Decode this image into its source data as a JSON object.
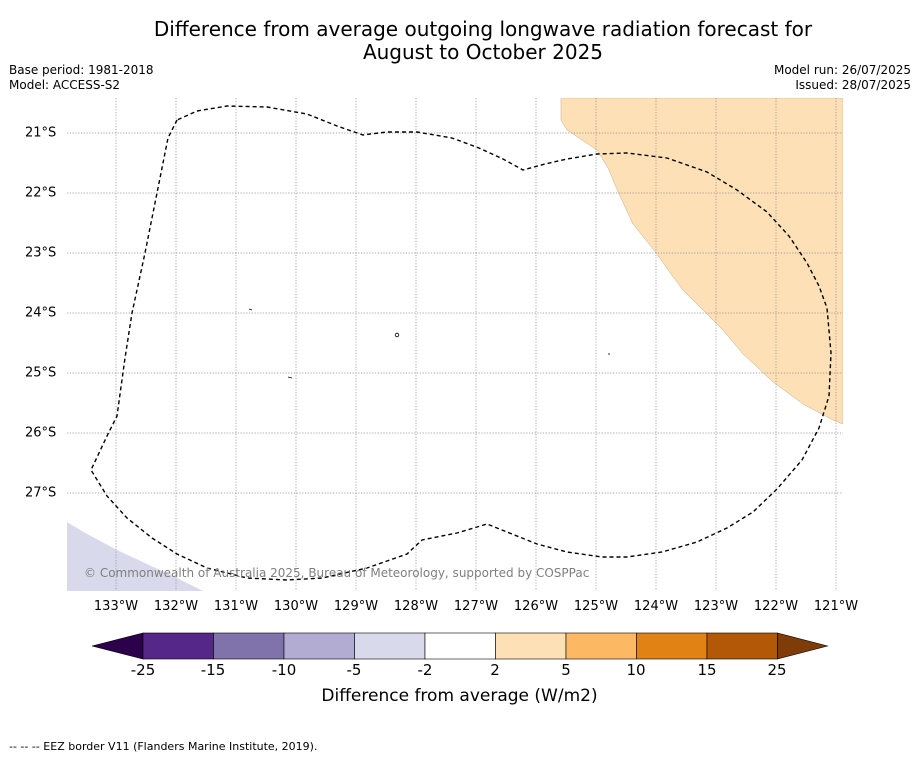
{
  "title_line1": "Difference from average outgoing longwave radiation forecast for",
  "title_line2": "August to October 2025",
  "base_period": "Base period: 1981-2018",
  "model": "Model: ACCESS-S2",
  "model_run": "Model run: 26/07/2025",
  "issued": "Issued: 28/07/2025",
  "lat_labels": [
    "21°S",
    "22°S",
    "23°S",
    "24°S",
    "25°S",
    "26°S",
    "27°S"
  ],
  "lon_labels": [
    "133°W",
    "132°W",
    "131°W",
    "130°W",
    "129°W",
    "128°W",
    "127°W",
    "126°W",
    "125°W",
    "124°W",
    "123°W",
    "122°W",
    "121°W"
  ],
  "copyright": "© Commonwealth of Australia 2025, Bureau of Meteorology, supported by COSPPac",
  "colorbar": {
    "ticks": [
      "-25",
      "-15",
      "-10",
      "-5",
      "-2",
      "2",
      "5",
      "10",
      "15",
      "25"
    ],
    "label": "Difference from average (W/m2)",
    "colors": [
      "#2d004b",
      "#542788",
      "#8073ac",
      "#b2abd2",
      "#d8daeb",
      "#ffffff",
      "#fee0b6",
      "#fdb863",
      "#e08214",
      "#b35806",
      "#7f3b08"
    ]
  },
  "map_colors": {
    "warm_region": "#fee0b6",
    "cool_region": "#d8daeb"
  },
  "footnote": "-- -- -- EEZ border V11 (Flanders Marine Institute, 2019)."
}
